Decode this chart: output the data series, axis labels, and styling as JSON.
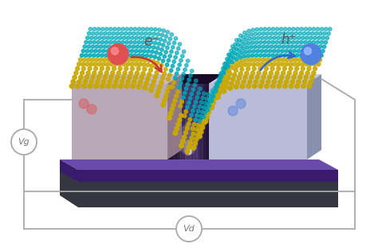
{
  "bg_color": "#ffffff",
  "fig_width": 4.74,
  "fig_height": 3.16,
  "dpi": 100,
  "vg_label": "Vg",
  "vd_label": "Vd",
  "e_label": "e⁻",
  "h_label": "h⁺",
  "substrate_color": "#4a4a52",
  "substrate_front": "#363640",
  "dielectric_color": "#5a3a8a",
  "dielectric_top": "#6a4aaa",
  "dielectric_front": "#3a1a6a",
  "left_contact_top": "#c8b8c8",
  "left_contact_front": "#b8a8b8",
  "left_contact_side": "#907888",
  "right_contact_top": "#c8cce0",
  "right_contact_front": "#b8bcd8",
  "right_contact_side": "#8890b0",
  "channel_dark": "#1a0a2a",
  "channel_mid": "#4a2a7a",
  "channel_glossy": "#6a4aaa",
  "dot_yellow": "#c8a800",
  "dot_teal": "#00a8b8",
  "electron_color": "#e05050",
  "hole_color": "#5080e0",
  "circuit_color": "#aaaaaa",
  "label_color": "#777777",
  "arrow_red": "#cc3333",
  "arrow_blue": "#3366cc"
}
